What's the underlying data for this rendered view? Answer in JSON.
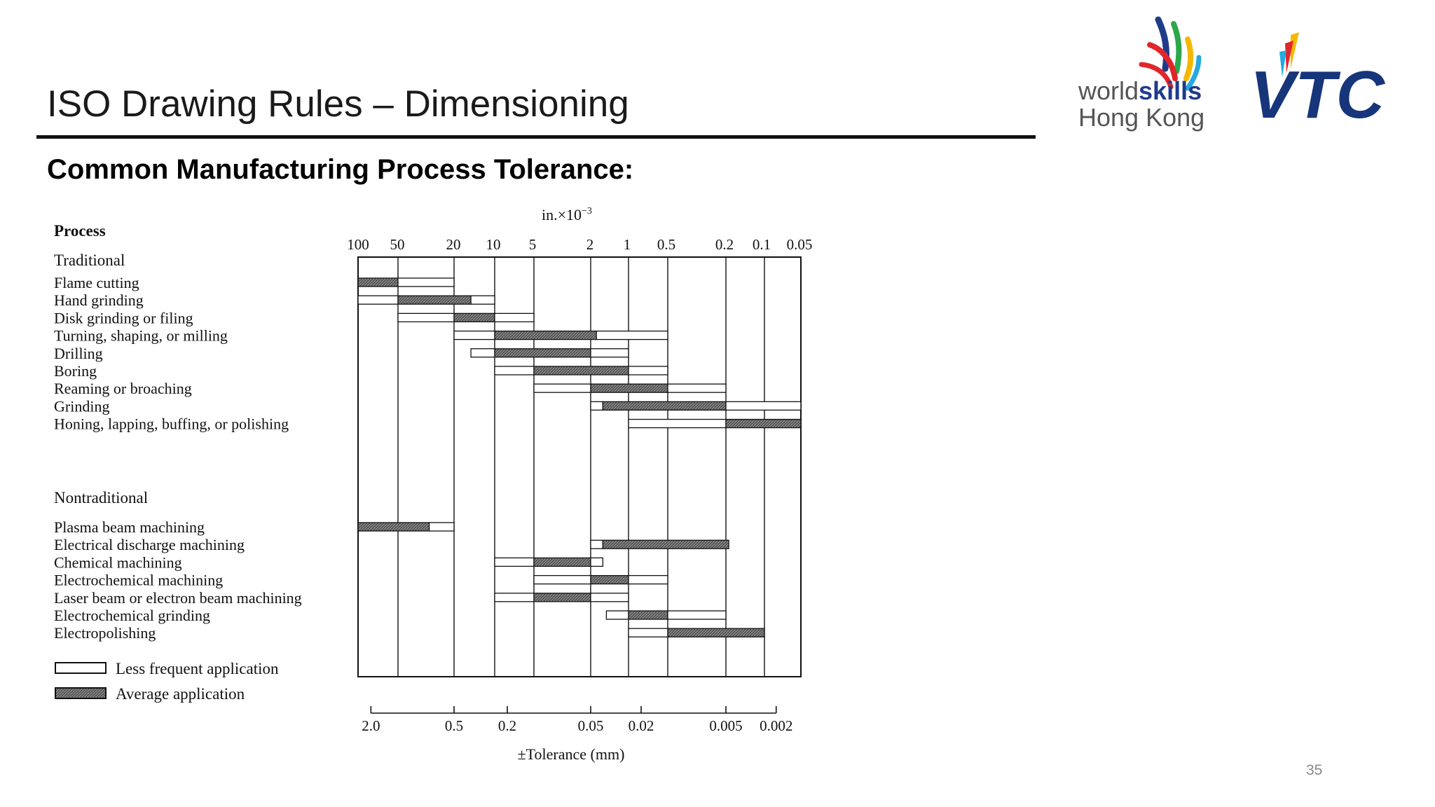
{
  "slide": {
    "title": "ISO Drawing Rules – Dimensioning",
    "subtitle": "Common Manufacturing Process Tolerance:",
    "page_number": "35"
  },
  "logos": {
    "worldskills": {
      "line1_light": "world",
      "line1_bold": "skills",
      "line2": "Hong Kong"
    },
    "vtc": {
      "text": "VTC"
    },
    "colors": {
      "blue": "#1f3b8a",
      "red": "#e0262b",
      "yellow": "#f5b800",
      "green": "#2aa84a",
      "sky": "#26a9e0",
      "navy": "#17357a"
    }
  },
  "chart_data": {
    "type": "table",
    "top_axis_label": "in.×10",
    "top_axis_label_exponent": "−3",
    "top_ticks": [
      "100",
      "50",
      "20",
      "10",
      "5",
      "2",
      "1",
      "0.5",
      "0.2",
      "0.1",
      "0.05"
    ],
    "bottom_axis_label": "±Tolerance (mm)",
    "bottom_ticks": [
      "2.0",
      "0.5",
      "0.2",
      "0.05",
      "0.02",
      "0.005",
      "0.002"
    ],
    "bottom_tick_positions_in_top_units": [
      80,
      20,
      8,
      2,
      0.8,
      0.2,
      0.08
    ],
    "process_header": "Process",
    "groups": [
      {
        "name": "Traditional",
        "processes": [
          {
            "name": "Flame cutting",
            "bars": [
              {
                "kind": "average",
                "from": 100,
                "to": 50
              },
              {
                "kind": "less",
                "from": 50,
                "to": 20
              }
            ]
          },
          {
            "name": "Hand grinding",
            "bars": [
              {
                "kind": "less",
                "from": 100,
                "to": 50
              },
              {
                "kind": "average",
                "from": 50,
                "to": 15
              },
              {
                "kind": "less",
                "from": 15,
                "to": 10
              }
            ]
          },
          {
            "name": "Disk grinding or filing",
            "bars": [
              {
                "kind": "less",
                "from": 50,
                "to": 20
              },
              {
                "kind": "average",
                "from": 20,
                "to": 10
              },
              {
                "kind": "less",
                "from": 10,
                "to": 5
              }
            ]
          },
          {
            "name": "Turning, shaping, or milling",
            "bars": [
              {
                "kind": "less",
                "from": 20,
                "to": 10
              },
              {
                "kind": "average",
                "from": 10,
                "to": 1.8
              },
              {
                "kind": "less",
                "from": 1.8,
                "to": 0.5
              }
            ]
          },
          {
            "name": "Drilling",
            "bars": [
              {
                "kind": "less",
                "from": 15,
                "to": 10
              },
              {
                "kind": "average",
                "from": 10,
                "to": 2
              },
              {
                "kind": "less",
                "from": 2,
                "to": 1
              }
            ]
          },
          {
            "name": "Boring",
            "bars": [
              {
                "kind": "less",
                "from": 10,
                "to": 5
              },
              {
                "kind": "average",
                "from": 5,
                "to": 1
              },
              {
                "kind": "less",
                "from": 1,
                "to": 0.5
              }
            ]
          },
          {
            "name": "Reaming or broaching",
            "bars": [
              {
                "kind": "less",
                "from": 5,
                "to": 2
              },
              {
                "kind": "average",
                "from": 2,
                "to": 0.5
              },
              {
                "kind": "less",
                "from": 0.5,
                "to": 0.2
              }
            ]
          },
          {
            "name": "Grinding",
            "bars": [
              {
                "kind": "less",
                "from": 2,
                "to": 1.6
              },
              {
                "kind": "average",
                "from": 1.6,
                "to": 0.2
              },
              {
                "kind": "less",
                "from": 0.2,
                "to": 0.05
              }
            ]
          },
          {
            "name": "Honing, lapping, buffing, or polishing",
            "bars": [
              {
                "kind": "less",
                "from": 1,
                "to": 0.2
              },
              {
                "kind": "average",
                "from": 0.2,
                "to": 0.05
              }
            ]
          }
        ]
      },
      {
        "name": "Nontraditional",
        "processes": [
          {
            "name": "Plasma beam machining",
            "bars": [
              {
                "kind": "average",
                "from": 100,
                "to": 30
              },
              {
                "kind": "less",
                "from": 30,
                "to": 20
              }
            ]
          },
          {
            "name": "Electrical discharge machining",
            "bars": [
              {
                "kind": "less",
                "from": 2,
                "to": 1.6
              },
              {
                "kind": "average",
                "from": 1.6,
                "to": 0.19
              }
            ]
          },
          {
            "name": "Chemical machining",
            "bars": [
              {
                "kind": "less",
                "from": 10,
                "to": 5
              },
              {
                "kind": "average",
                "from": 5,
                "to": 2
              },
              {
                "kind": "less",
                "from": 2,
                "to": 1.6
              }
            ]
          },
          {
            "name": "Electrochemical machining",
            "bars": [
              {
                "kind": "less",
                "from": 5,
                "to": 2
              },
              {
                "kind": "average",
                "from": 2,
                "to": 1
              },
              {
                "kind": "less",
                "from": 1,
                "to": 0.5
              }
            ]
          },
          {
            "name": "Laser beam or electron beam machining",
            "bars": [
              {
                "kind": "less",
                "from": 10,
                "to": 5
              },
              {
                "kind": "average",
                "from": 5,
                "to": 2
              },
              {
                "kind": "less",
                "from": 2,
                "to": 1
              }
            ]
          },
          {
            "name": "Electrochemical grinding",
            "bars": [
              {
                "kind": "less",
                "from": 1.5,
                "to": 1
              },
              {
                "kind": "average",
                "from": 1,
                "to": 0.5
              },
              {
                "kind": "less",
                "from": 0.5,
                "to": 0.2
              }
            ]
          },
          {
            "name": "Electropolishing",
            "bars": [
              {
                "kind": "less",
                "from": 1,
                "to": 0.5
              },
              {
                "kind": "average",
                "from": 0.5,
                "to": 0.1
              }
            ]
          }
        ]
      }
    ],
    "legend": {
      "less": "Less frequent application",
      "average": "Average application"
    },
    "colors": {
      "average_fill": "#555555",
      "less_fill": "#ffffff",
      "stroke": "#111111"
    }
  }
}
